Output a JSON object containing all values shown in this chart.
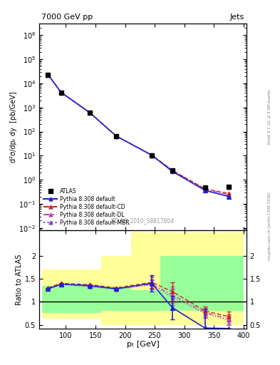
{
  "title_left": "7000 GeV pp",
  "title_right": "Jets",
  "watermark": "ATLAS_2010_S8817804",
  "right_label": "Rivet 3.1.10, ≥ 3.5M events",
  "arxiv_label": "mcplots.cern.ch [arXiv:1306.3436]",
  "ylabel_main": "d²σ/dpₜ dy  [pb/GeV]",
  "ylabel_ratio": "Ratio to ATLAS",
  "xlabel": "pₜ [GeV]",
  "pt_centers": [
    70,
    92,
    140,
    185,
    245,
    280,
    335,
    375
  ],
  "atlas_y": [
    23000.0,
    4200,
    620,
    65,
    10.0,
    2.5,
    0.48,
    0.5
  ],
  "atlas_yerr_lo": [
    1800,
    380,
    55,
    6,
    1.0,
    0.3,
    0.05,
    0.08
  ],
  "atlas_yerr_hi": [
    1800,
    380,
    55,
    6,
    1.0,
    0.3,
    0.05,
    0.08
  ],
  "pythia_default_y": [
    23000.0,
    4200,
    620,
    65,
    10.5,
    2.2,
    0.36,
    0.2
  ],
  "pythia_cd_y": [
    23000.0,
    4250,
    630,
    66,
    10.6,
    2.45,
    0.42,
    0.27
  ],
  "pythia_dl_y": [
    23000.0,
    4220,
    622,
    65,
    10.5,
    2.4,
    0.4,
    0.24
  ],
  "pythia_mbr_y": [
    23000.0,
    4200,
    618,
    64,
    10.4,
    2.35,
    0.39,
    0.23
  ],
  "ratio_default": [
    1.28,
    1.38,
    1.35,
    1.28,
    1.4,
    0.87,
    0.43,
    0.42
  ],
  "ratio_default_err": [
    0.0,
    0.0,
    0.0,
    0.0,
    0.18,
    0.25,
    0.4,
    0.0
  ],
  "ratio_cd": [
    1.3,
    1.4,
    1.37,
    1.3,
    1.42,
    1.22,
    0.8,
    0.68
  ],
  "ratio_cd_err": [
    0.0,
    0.0,
    0.0,
    0.0,
    0.12,
    0.2,
    0.1,
    0.1
  ],
  "ratio_dl": [
    1.28,
    1.38,
    1.34,
    1.28,
    1.38,
    1.15,
    0.77,
    0.63
  ],
  "ratio_dl_err": [
    0.0,
    0.0,
    0.0,
    0.0,
    0.1,
    0.18,
    0.1,
    0.1
  ],
  "ratio_mbr": [
    1.28,
    1.37,
    1.33,
    1.27,
    1.37,
    1.1,
    0.75,
    0.6
  ],
  "ratio_mbr_err": [
    0.0,
    0.0,
    0.0,
    0.0,
    0.1,
    0.18,
    0.1,
    0.1
  ],
  "band_edges": [
    60,
    110,
    160,
    210,
    260,
    310,
    400
  ],
  "yellow_lo": [
    0.63,
    0.63,
    0.5,
    0.5,
    0.5,
    0.5
  ],
  "yellow_hi": [
    1.7,
    1.7,
    2.0,
    2.5,
    2.5,
    2.5
  ],
  "green_lo": [
    0.75,
    0.75,
    0.8,
    0.8,
    0.8,
    0.8
  ],
  "green_hi": [
    1.35,
    1.35,
    1.3,
    1.25,
    2.0,
    2.0
  ],
  "color_default": "#2222cc",
  "color_cd": "#cc2222",
  "color_dl": "#cc44aa",
  "color_mbr": "#8844cc",
  "xlim": [
    55,
    405
  ],
  "ylim_main": [
    0.008,
    3000000.0
  ],
  "ylim_ratio": [
    0.42,
    2.55
  ],
  "ratio_yticks": [
    0.5,
    1.0,
    1.5,
    2.0
  ]
}
